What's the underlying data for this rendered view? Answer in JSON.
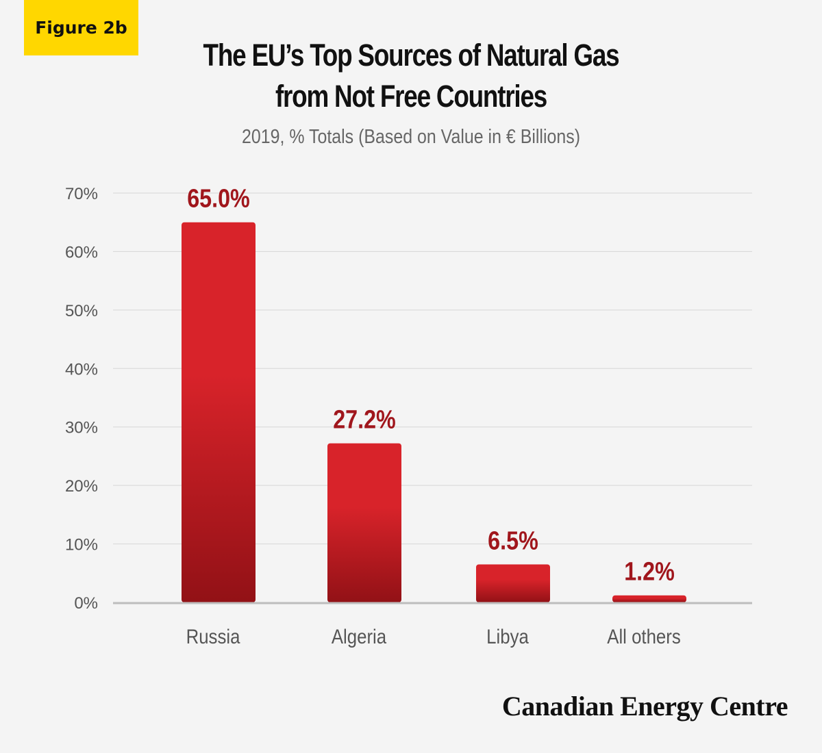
{
  "figure_tag": "Figure 2b",
  "title_line1": "The EU’s Top Sources of Natural Gas",
  "title_line2": "from Not Free Countries",
  "subtitle": "2019, % Totals (Based on Value in € Billions)",
  "brand": "Canadian Energy Centre",
  "colors": {
    "bar_top": "#d8232a",
    "bar_bottom": "#921116",
    "value_label": "#a0161c",
    "axis_text": "#555555",
    "grid": "#d6d6d6",
    "tag_background": "#ffd700"
  },
  "chart_data": {
    "type": "bar",
    "categories": [
      "Russia",
      "Algeria",
      "Libya",
      "All others"
    ],
    "values": [
      65.0,
      27.2,
      6.5,
      1.2
    ],
    "value_labels": [
      "65.0%",
      "27.2%",
      "6.5%",
      "1.2%"
    ],
    "ylim": [
      0,
      70
    ],
    "yticks": [
      0,
      10,
      20,
      30,
      40,
      50,
      60,
      70
    ],
    "ytick_labels": [
      "0%",
      "10%",
      "20%",
      "30%",
      "40%",
      "50%",
      "60%",
      "70%"
    ],
    "grid": true,
    "legend": "none"
  }
}
